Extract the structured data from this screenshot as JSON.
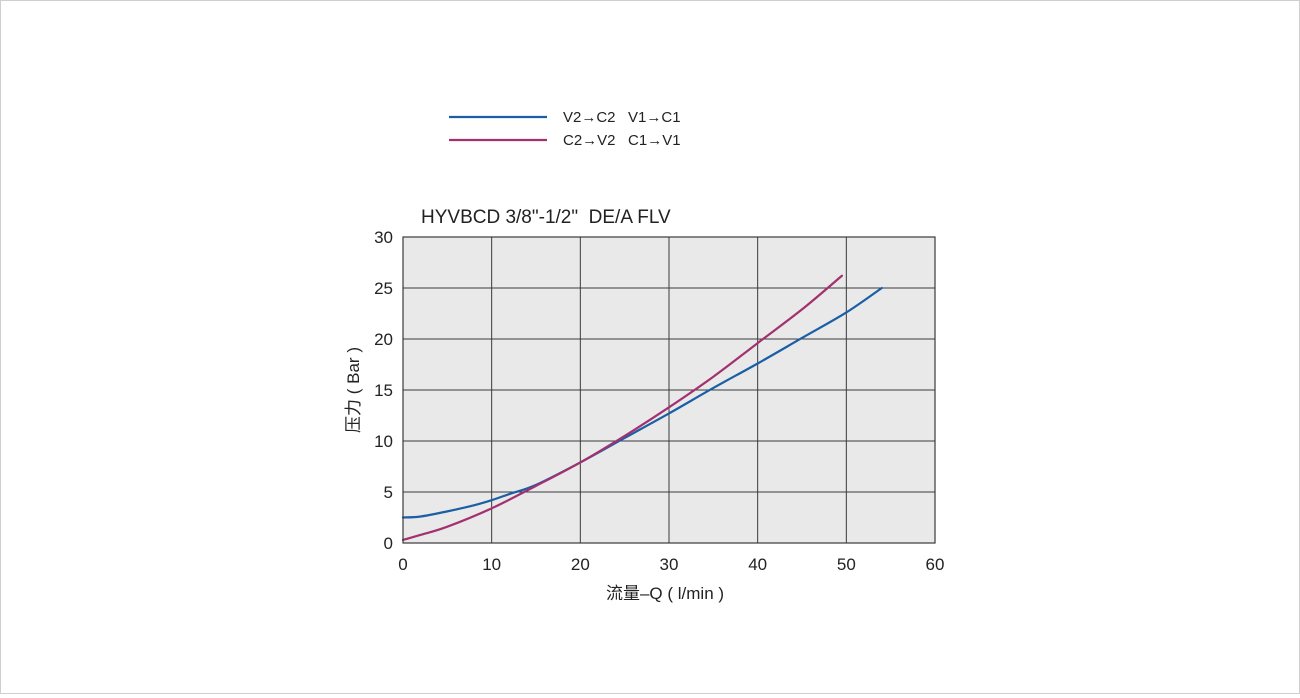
{
  "colors": {
    "plot_background": "#e9e9e9",
    "grid": "#3a3a3a",
    "series_1": "#1a5fa5",
    "series_2": "#a3306f"
  },
  "chart_data": {
    "type": "line",
    "title": "HYVBCD 3/8\"-1/2\"  DE/A FLV",
    "xlabel": "流量–Q ( l/min )",
    "ylabel": "压力 ( Bar )",
    "xlim": [
      0,
      60
    ],
    "ylim": [
      0,
      30
    ],
    "x_ticks": [
      "0",
      "10",
      "20",
      "30",
      "40",
      "50",
      "60"
    ],
    "y_ticks": [
      "0",
      "5",
      "10",
      "15",
      "20",
      "25",
      "30"
    ],
    "grid": true,
    "legend_position": "top-left",
    "series": [
      {
        "name": "V2→C2   V1→C1",
        "x": [
          0,
          2,
          5,
          8,
          10,
          12,
          15,
          20,
          25,
          30,
          35,
          40,
          45,
          50,
          54
        ],
        "y": [
          2.5,
          2.6,
          3.1,
          3.7,
          4.2,
          4.8,
          5.7,
          7.9,
          10.3,
          12.7,
          15.2,
          17.6,
          20.1,
          22.6,
          25.0
        ]
      },
      {
        "name": "C2→V2   C1→V1",
        "x": [
          0,
          2,
          5,
          10,
          15,
          20,
          25,
          30,
          35,
          40,
          45,
          49.5
        ],
        "y": [
          0.3,
          0.8,
          1.6,
          3.4,
          5.6,
          7.9,
          10.5,
          13.3,
          16.3,
          19.6,
          22.9,
          26.2
        ]
      }
    ]
  }
}
